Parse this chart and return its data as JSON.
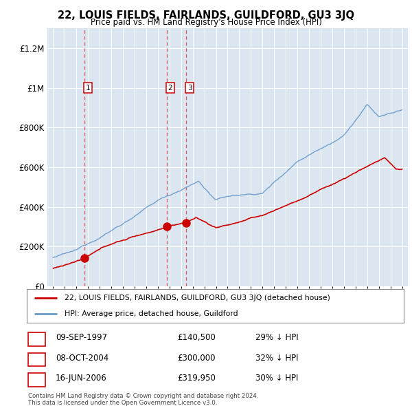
{
  "title": "22, LOUIS FIELDS, FAIRLANDS, GUILDFORD, GU3 3JQ",
  "subtitle": "Price paid vs. HM Land Registry's House Price Index (HPI)",
  "ylim": [
    0,
    1300000
  ],
  "yticks": [
    0,
    200000,
    400000,
    600000,
    800000,
    1000000,
    1200000
  ],
  "ytick_labels": [
    "£0",
    "£200K",
    "£400K",
    "£600K",
    "£800K",
    "£1M",
    "£1.2M"
  ],
  "red_line_color": "#cc0000",
  "blue_line_color": "#6699cc",
  "dashed_line_color": "#dd4444",
  "transactions": [
    {
      "date_year": 1997.69,
      "price": 140500,
      "label": "1"
    },
    {
      "date_year": 2004.77,
      "price": 300000,
      "label": "2"
    },
    {
      "date_year": 2006.45,
      "price": 319950,
      "label": "3"
    }
  ],
  "table_rows": [
    {
      "num": "1",
      "date": "09-SEP-1997",
      "price": "£140,500",
      "hpi": "29% ↓ HPI"
    },
    {
      "num": "2",
      "date": "08-OCT-2004",
      "price": "£300,000",
      "hpi": "32% ↓ HPI"
    },
    {
      "num": "3",
      "date": "16-JUN-2006",
      "price": "£319,950",
      "hpi": "30% ↓ HPI"
    }
  ],
  "legend_property_label": "22, LOUIS FIELDS, FAIRLANDS, GUILDFORD, GU3 3JQ (detached house)",
  "legend_hpi_label": "HPI: Average price, detached house, Guildford",
  "footer": "Contains HM Land Registry data © Crown copyright and database right 2024.\nThis data is licensed under the Open Government Licence v3.0.",
  "background_color": "#ffffff",
  "plot_bg_color": "#dce6f1"
}
